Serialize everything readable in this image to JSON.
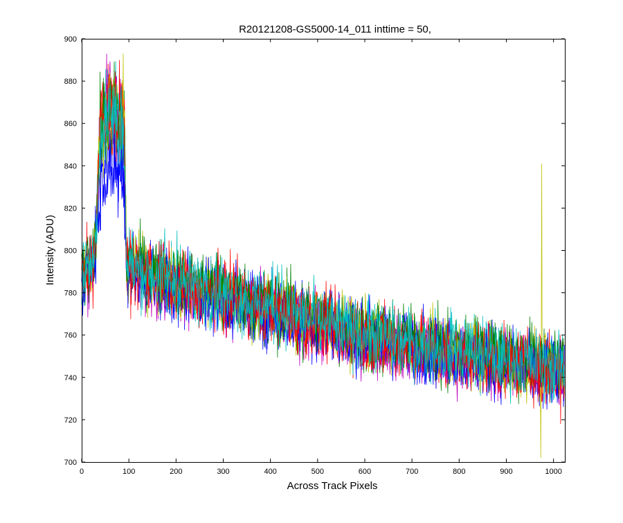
{
  "chart_data": {
    "type": "line",
    "title": "R20121208-GS5000-14_011 inttime = 50,",
    "xlabel": "Across Track Pixels",
    "ylabel": "Intensity (ADU)",
    "xlim": [
      0,
      1024
    ],
    "ylim": [
      700,
      900
    ],
    "xticks": [
      0,
      100,
      200,
      300,
      400,
      500,
      600,
      700,
      800,
      900,
      1000
    ],
    "yticks": [
      700,
      720,
      740,
      760,
      780,
      800,
      820,
      840,
      860,
      880,
      900
    ],
    "grid": false,
    "legend": "none",
    "series_colors": [
      "#0000ff",
      "#008000",
      "#ff0000",
      "#00bfbf",
      "#bf00bf",
      "#bfbf00",
      "#0000ff",
      "#008000",
      "#ff0000",
      "#00bfbf"
    ],
    "series": [
      {
        "x": [
          0,
          25,
          30,
          40,
          60,
          90,
          95,
          200,
          400,
          600,
          800,
          1000,
          1024
        ],
        "y": [
          790,
          795,
          805,
          838,
          842,
          836,
          793,
          784,
          772,
          760,
          752,
          744,
          742
        ]
      },
      {
        "x": [
          0,
          25,
          30,
          40,
          60,
          90,
          95,
          200,
          400,
          600,
          800,
          1000,
          1024
        ],
        "y": [
          787,
          793,
          808,
          858,
          866,
          860,
          791,
          783,
          771,
          759,
          751,
          745,
          744
        ]
      },
      {
        "x": [
          0,
          25,
          30,
          40,
          60,
          90,
          95,
          200,
          400,
          600,
          800,
          1000,
          1024
        ],
        "y": [
          789,
          794,
          809,
          860,
          868,
          862,
          792,
          785,
          773,
          758,
          750,
          743,
          741
        ]
      },
      {
        "x": [
          0,
          25,
          30,
          40,
          60,
          90,
          95,
          200,
          400,
          600,
          800,
          1000,
          1024
        ],
        "y": [
          791,
          796,
          807,
          857,
          865,
          859,
          794,
          786,
          774,
          761,
          753,
          746,
          745
        ]
      },
      {
        "x": [
          0,
          25,
          30,
          40,
          60,
          90,
          95,
          200,
          400,
          600,
          800,
          1000,
          1024
        ],
        "y": [
          788,
          792,
          810,
          862,
          872,
          864,
          790,
          782,
          770,
          757,
          749,
          742,
          740
        ]
      },
      {
        "x": [
          0,
          25,
          30,
          40,
          60,
          90,
          95,
          200,
          400,
          600,
          800,
          1000,
          1024
        ],
        "y": [
          790,
          795,
          809,
          861,
          869,
          863,
          793,
          784,
          772,
          760,
          752,
          744,
          743
        ],
        "spikes": [
          {
            "x": 975,
            "y": 841
          },
          {
            "x": 973,
            "y": 702
          }
        ]
      },
      {
        "x": [
          0,
          25,
          30,
          40,
          60,
          90,
          95,
          200,
          400,
          600,
          800,
          1000,
          1024
        ],
        "y": [
          786,
          792,
          804,
          836,
          841,
          835,
          790,
          782,
          770,
          758,
          750,
          742,
          740
        ]
      },
      {
        "x": [
          0,
          25,
          30,
          40,
          60,
          90,
          95,
          200,
          400,
          600,
          800,
          1000,
          1024
        ],
        "y": [
          792,
          797,
          808,
          859,
          867,
          861,
          795,
          787,
          775,
          762,
          754,
          747,
          746
        ]
      },
      {
        "x": [
          0,
          25,
          30,
          40,
          60,
          90,
          95,
          200,
          400,
          600,
          800,
          1000,
          1024
        ],
        "y": [
          790,
          794,
          808,
          860,
          867,
          861,
          792,
          784,
          772,
          759,
          751,
          744,
          742
        ]
      },
      {
        "x": [
          0,
          25,
          30,
          40,
          60,
          90,
          95,
          200,
          400,
          600,
          800,
          1000,
          1024
        ],
        "y": [
          789,
          795,
          807,
          858,
          866,
          860,
          793,
          785,
          773,
          760,
          752,
          745,
          744
        ]
      }
    ]
  }
}
